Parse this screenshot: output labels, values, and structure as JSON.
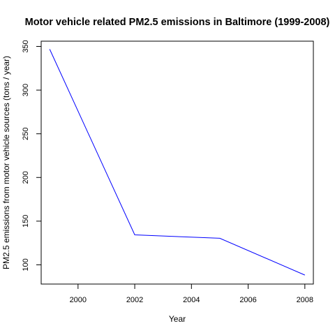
{
  "chart_data": {
    "type": "line",
    "title": "Motor vehicle related PM2.5 emissions in Baltimore (1999-2008)",
    "xlabel": "Year",
    "ylabel": "PM2.5 emissions from motor vehicle sources (tons / year)",
    "x": [
      1999,
      2002,
      2005,
      2008
    ],
    "series": [
      {
        "values": [
          346.8,
          134.3,
          130.4,
          88.3
        ],
        "color": "#0000ff"
      }
    ],
    "xlim": [
      1998.7,
      2008.3
    ],
    "ylim": [
      78,
      356
    ],
    "xticks": [
      "2000",
      "2002",
      "2004",
      "2006",
      "2008"
    ],
    "yticks": [
      "100",
      "150",
      "200",
      "250",
      "300",
      "350"
    ],
    "grid": false,
    "legend": "none"
  }
}
